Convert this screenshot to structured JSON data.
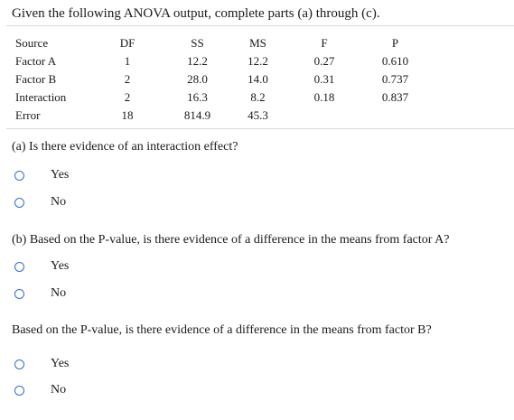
{
  "heading": "Given the following ANOVA output, complete parts (a) through (c).",
  "table": {
    "headers": [
      "Source",
      "DF",
      "SS",
      "MS",
      "F",
      "P"
    ],
    "rows": [
      [
        "Factor A",
        "1",
        "12.2",
        "12.2",
        "0.27",
        "0.610"
      ],
      [
        "Factor B",
        "2",
        "28.0",
        "14.0",
        "0.31",
        "0.737"
      ],
      [
        "Interaction",
        "2",
        "16.3",
        "8.2",
        "0.18",
        "0.837"
      ],
      [
        "Error",
        "18",
        "814.9",
        "45.3",
        "",
        ""
      ]
    ]
  },
  "questions": [
    {
      "text": "(a) Is there evidence of an interaction effect?",
      "options": [
        "Yes",
        "No"
      ]
    },
    {
      "text": "(b) Based on the P-value, is there evidence of a difference in the means from factor A?",
      "options": [
        "Yes",
        "No"
      ]
    },
    {
      "text": "Based on the P-value, is there evidence of a difference in the means from factor B?",
      "options": [
        "Yes",
        "No"
      ]
    }
  ],
  "colors": {
    "radio_border": "#2f6fd0",
    "rule": "#d9d9d9"
  }
}
